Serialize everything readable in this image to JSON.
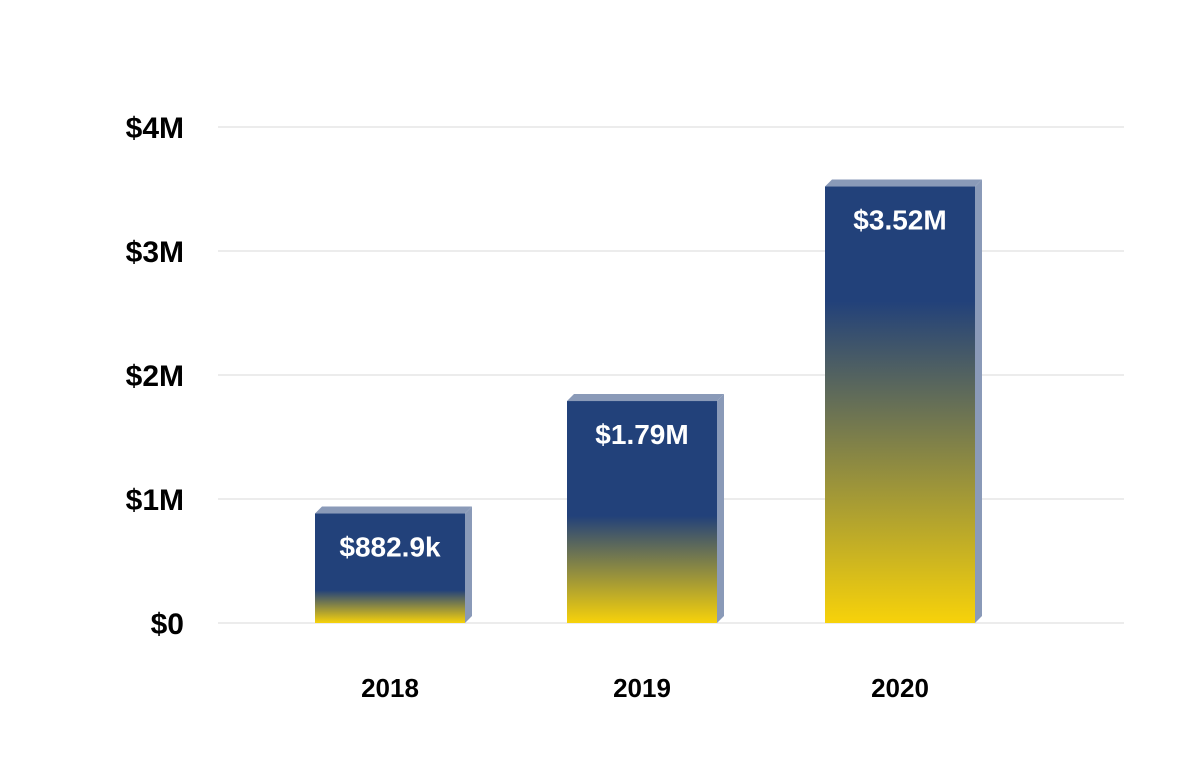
{
  "chart_data": {
    "type": "bar",
    "categories": [
      "2018",
      "2019",
      "2020"
    ],
    "values": [
      882900,
      1790000,
      3520000
    ],
    "data_labels": [
      "$882.9k",
      "$1.79M",
      "$3.52M"
    ],
    "y_ticks": [
      0,
      1000000,
      2000000,
      3000000,
      4000000
    ],
    "y_tick_labels": [
      "$0",
      "$1M",
      "$2M",
      "$3M",
      "$4M"
    ],
    "ylim": [
      0,
      4000000
    ],
    "title": "",
    "xlabel": "",
    "ylabel": "",
    "grid": true,
    "legend": "none",
    "colors": {
      "bar_top": "#22417a",
      "bar_bottom": "#f7d20a",
      "bar_side": "#8a9ab8",
      "grid": "#e6e6e6"
    }
  }
}
